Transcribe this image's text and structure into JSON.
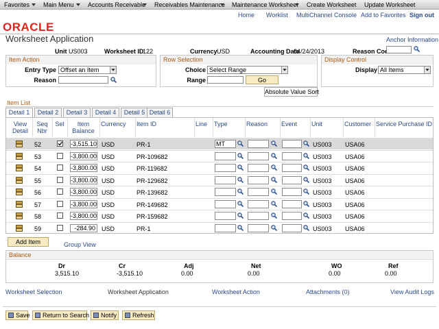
{
  "nav": {
    "items": [
      "Favorites",
      "Main Menu",
      "Accounts Receivable",
      "Receivables Maintenance",
      "Maintenance Worksheet",
      "Create Worksheet",
      "Update Worksheet"
    ],
    "links": [
      "Home",
      "Worklist",
      "MultiChannel Console",
      "Add to Favorites",
      "Sign out"
    ]
  },
  "logo": "ORACLE",
  "page": {
    "title": "Worksheet Application",
    "anchor": "Anchor Information"
  },
  "summary": {
    "unit_label": "Unit",
    "unit": "US003",
    "worksheet_label": "Worksheet ID",
    "worksheet": "122",
    "currency_label": "Currency",
    "currency": "USD",
    "date_label": "Accounting Date",
    "date": "04/24/2013",
    "reason_label": "Reason Code"
  },
  "item_action": {
    "title": "Item Action",
    "entry_type_label": "Entry Type",
    "entry_type": "Offset an Item",
    "reason_label": "Reason"
  },
  "row_selection": {
    "title": "Row Selection",
    "choice_label": "Choice",
    "choice": "Select Range",
    "range_label": "Range",
    "go": "Go"
  },
  "display_control": {
    "title": "Display Control",
    "display_label": "Display",
    "display": "All Items"
  },
  "abs_sort": "Absolute Value Sort",
  "item_list": {
    "title": "Item List",
    "tabs": [
      "Detail 1",
      "Detail 2",
      "Detail 3",
      "Detail 4",
      "Detail 5",
      "Detail 6"
    ],
    "columns": [
      "View Detail",
      "Seq Nbr",
      "Sel",
      "Item Balance",
      "Currency",
      "Item ID",
      "Line",
      "Type",
      "Reason",
      "Event",
      "Unit",
      "Customer",
      "Service Purchase ID"
    ],
    "rows": [
      {
        "seq": "52",
        "selected": true,
        "balance": "-3,515.10",
        "currency": "USD",
        "item_id": "PR-1",
        "type": "MT",
        "unit": "US003",
        "customer": "USA06"
      },
      {
        "seq": "53",
        "selected": false,
        "balance": "-3,800.00",
        "currency": "USD",
        "item_id": "PR-109682",
        "unit": "US003",
        "customer": "USA06"
      },
      {
        "seq": "54",
        "selected": false,
        "balance": "-3,800.00",
        "currency": "USD",
        "item_id": "PR-119682",
        "unit": "US003",
        "customer": "USA06"
      },
      {
        "seq": "55",
        "selected": false,
        "balance": "-3,800.00",
        "currency": "USD",
        "item_id": "PR-129682",
        "unit": "US003",
        "customer": "USA06"
      },
      {
        "seq": "56",
        "selected": false,
        "balance": "-3,800.00",
        "currency": "USD",
        "item_id": "PR-139682",
        "unit": "US003",
        "customer": "USA06"
      },
      {
        "seq": "57",
        "selected": false,
        "balance": "-3,800.00",
        "currency": "USD",
        "item_id": "PR-149682",
        "unit": "US003",
        "customer": "USA06"
      },
      {
        "seq": "58",
        "selected": false,
        "balance": "-3,800.00",
        "currency": "USD",
        "item_id": "PR-159682",
        "unit": "US003",
        "customer": "USA06"
      },
      {
        "seq": "59",
        "selected": false,
        "balance": "-284.90",
        "currency": "USD",
        "item_id": "PR-1",
        "unit": "US003",
        "customer": "USA06"
      }
    ],
    "add_item": "Add Item",
    "group_view": "Group View"
  },
  "balance": {
    "title": "Balance",
    "labels": [
      "Dr",
      "Cr",
      "Adj",
      "Net",
      "WO",
      "Ref"
    ],
    "values": [
      "3,515.10",
      "-3,515.10",
      "0.00",
      "0.00",
      "0.00",
      "0.00"
    ]
  },
  "footer_links": [
    "Worksheet Selection",
    "Worksheet Application",
    "Worksheet Action",
    "Attachments (0)",
    "View Audit Logs"
  ],
  "toolbar": [
    "Save",
    "Return to Search",
    "Notify",
    "Refresh"
  ]
}
